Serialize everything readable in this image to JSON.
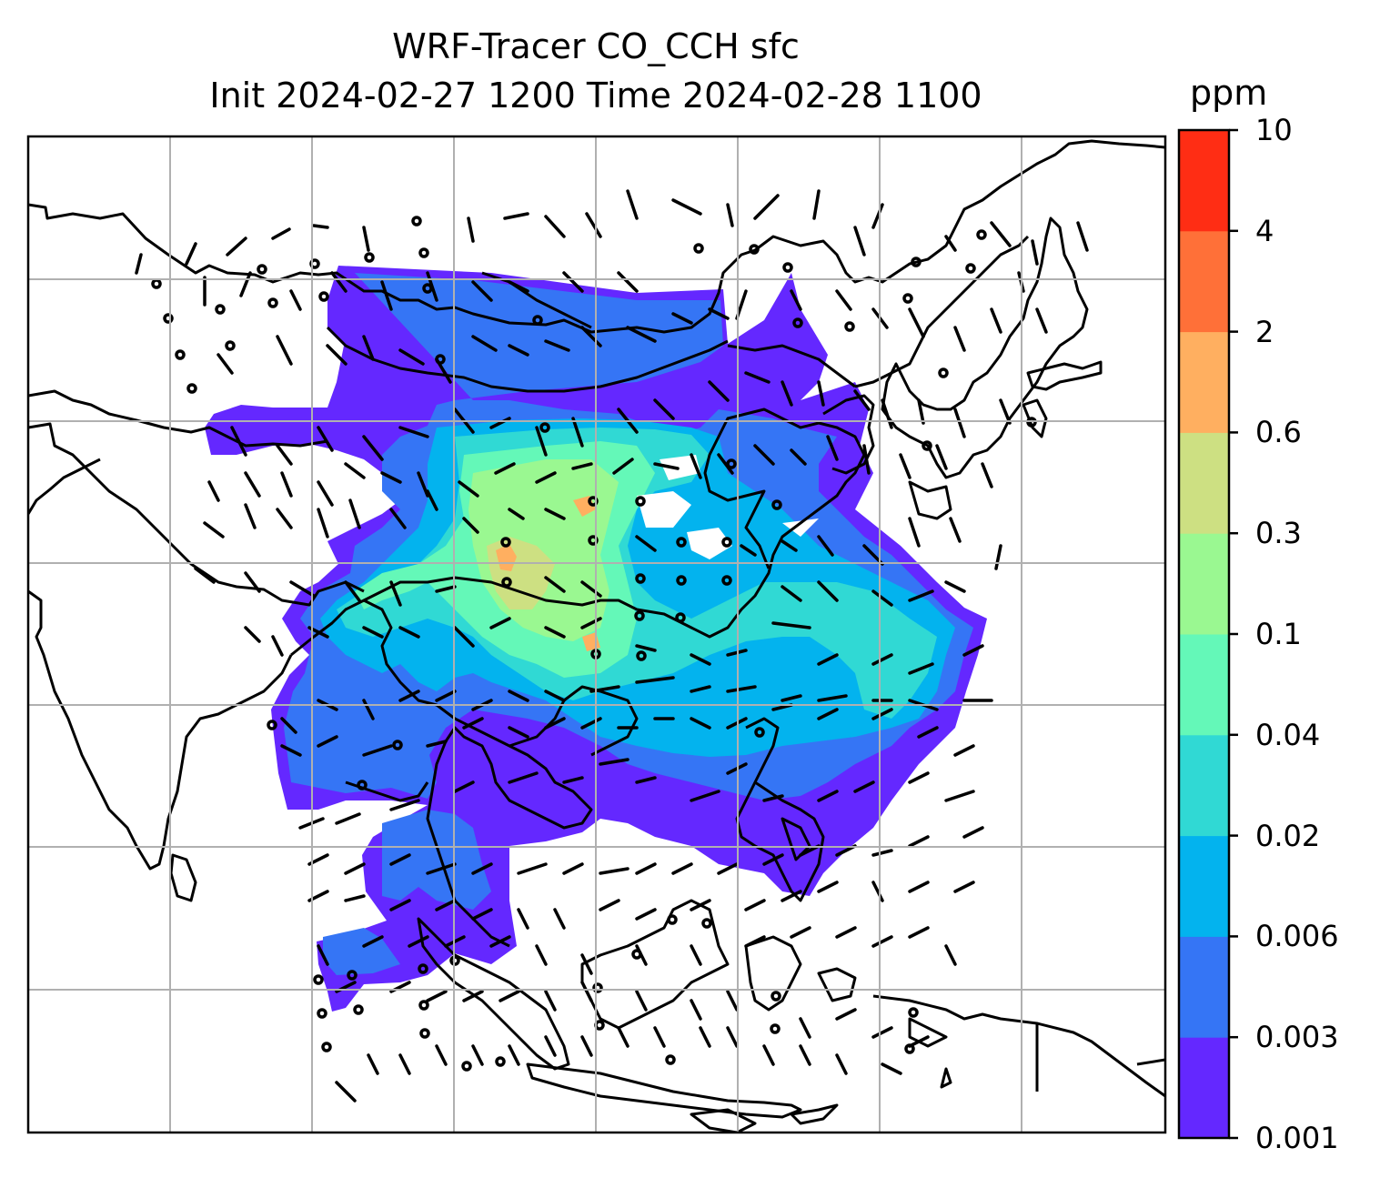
{
  "title": {
    "line1": "WRF-Tracer CO_CCH sfc",
    "line2": "Init 2024-02-27 1200 Time 2024-02-28 1100"
  },
  "colorbar": {
    "unit": "ppm",
    "levels": [
      "0.001",
      "0.003",
      "0.006",
      "0.02",
      "0.04",
      "0.1",
      "0.3",
      "0.6",
      "2",
      "4",
      "10"
    ],
    "colors": [
      "#6428ff",
      "#3575f5",
      "#03b3ee",
      "#30d9d4",
      "#64f8b8",
      "#9af891",
      "#cde082",
      "#ffaf60",
      "#ff7038",
      "#ff2d14"
    ]
  },
  "colors": {
    "grid": "#b0b0b0",
    "coastline": "#000000",
    "barb": "#000000",
    "frame": "#000000"
  }
}
